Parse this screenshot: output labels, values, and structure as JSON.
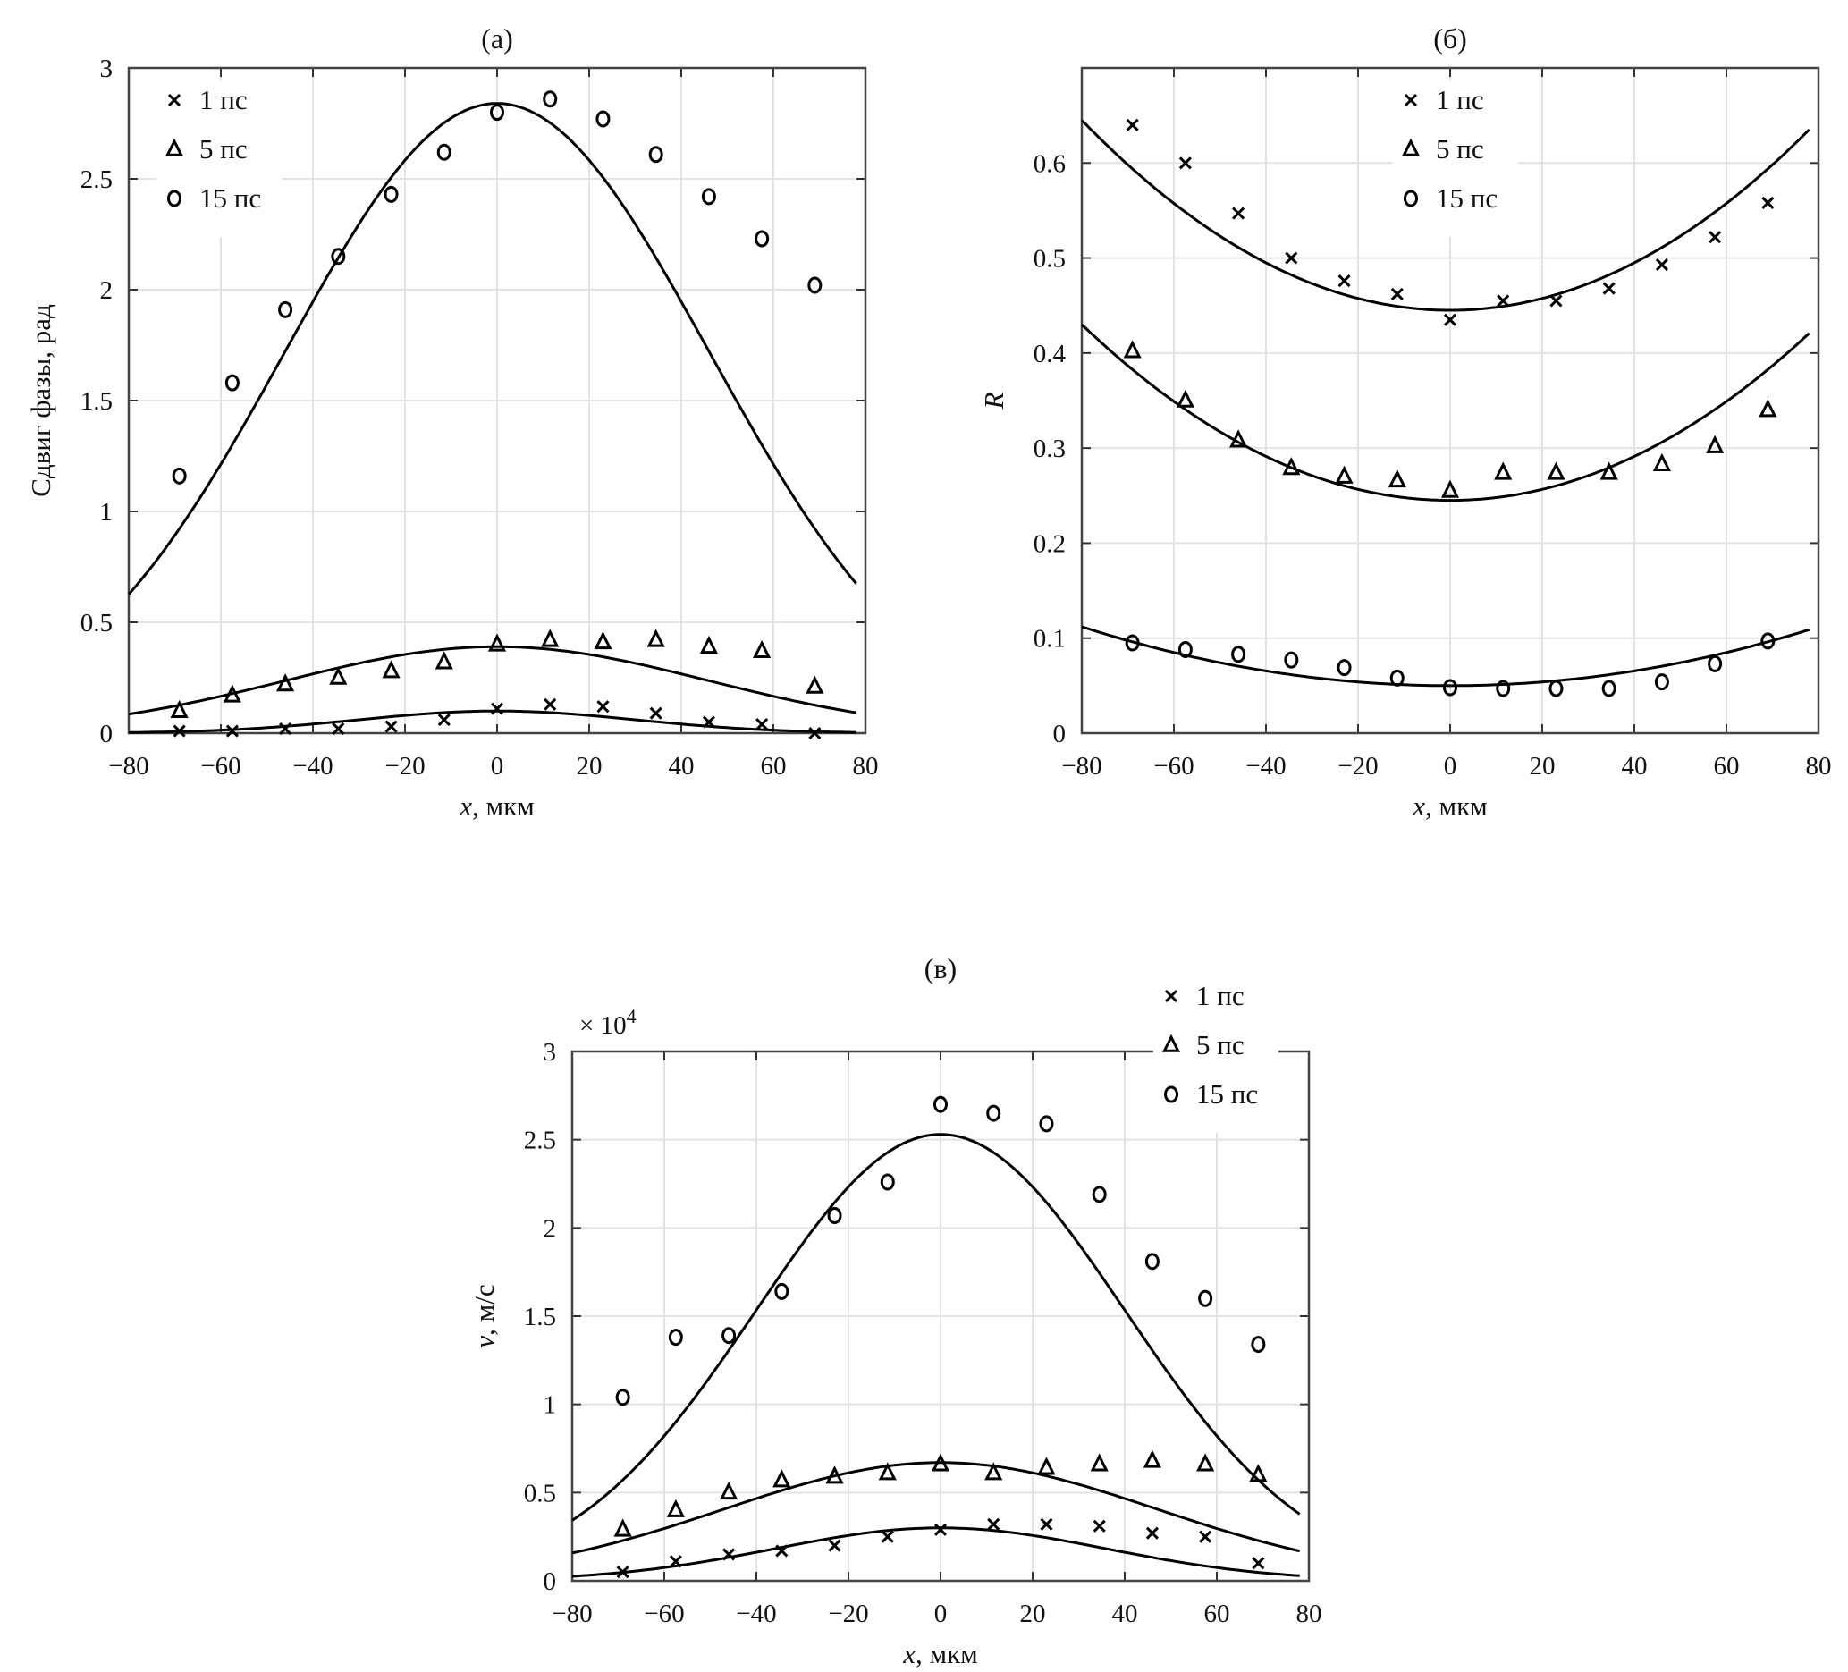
{
  "chart_data": [
    {
      "id": "a",
      "type": "scatter",
      "title": "(а)",
      "xlabel_var": "x",
      "xlabel_unit": ", мкм",
      "ylabel": "Сдвиг фазы, рад",
      "exponent_label": "",
      "xlim": [
        -80,
        80
      ],
      "ylim": [
        0,
        3
      ],
      "xticks": [
        "-80",
        "-60",
        "-40",
        "-20",
        "0",
        "20",
        "40",
        "60",
        "80"
      ],
      "yticks": [
        "0",
        "0.5",
        "1",
        "1.5",
        "2",
        "2.5",
        "3"
      ],
      "grid": true,
      "legend_position": "top-left",
      "x": [
        -69,
        -57.5,
        -46,
        -34.5,
        -23,
        -11.5,
        0,
        11.5,
        23,
        34.5,
        46,
        57.5,
        69
      ],
      "series": [
        {
          "name": "1 пс",
          "marker": "x",
          "values": [
            0.01,
            0.01,
            0.02,
            0.02,
            0.03,
            0.06,
            0.11,
            0.13,
            0.12,
            0.09,
            0.05,
            0.04,
            0.0
          ],
          "fit": {
            "kind": "gaussian",
            "peak": 0.1,
            "center": 0,
            "sigma": 30
          }
        },
        {
          "name": "5 пс",
          "marker": "triangle",
          "values": [
            0.1,
            0.17,
            0.22,
            0.25,
            0.28,
            0.32,
            0.4,
            0.42,
            0.41,
            0.42,
            0.39,
            0.37,
            0.21
          ],
          "fit": {
            "kind": "gaussian",
            "peak": 0.39,
            "center": 0,
            "sigma": 46
          }
        },
        {
          "name": "15 пс",
          "marker": "circle",
          "values": [
            1.16,
            1.58,
            1.91,
            2.15,
            2.43,
            2.62,
            2.8,
            2.86,
            2.77,
            2.61,
            2.42,
            2.23,
            2.02
          ],
          "fit": {
            "kind": "gaussian",
            "peak": 2.84,
            "center": 0,
            "sigma": 46
          }
        }
      ]
    },
    {
      "id": "b",
      "type": "scatter",
      "title": "(б)",
      "xlabel_var": "x",
      "xlabel_unit": ", мкм",
      "ylabel": "R",
      "exponent_label": "",
      "xlim": [
        -80,
        80
      ],
      "ylim": [
        0,
        0.7
      ],
      "xticks": [
        "-80",
        "-60",
        "-40",
        "-20",
        "0",
        "20",
        "40",
        "60",
        "80"
      ],
      "yticks": [
        "0",
        "0.1",
        "0.2",
        "0.3",
        "0.4",
        "0.5",
        "0.6"
      ],
      "grid": true,
      "legend_position": "top-center",
      "x": [
        -69,
        -57.5,
        -46,
        -34.5,
        -23,
        -11.5,
        0,
        11.5,
        23,
        34.5,
        46,
        57.5,
        69
      ],
      "series": [
        {
          "name": "1 пс",
          "marker": "x",
          "values": [
            0.64,
            0.6,
            0.547,
            0.5,
            0.476,
            0.462,
            0.435,
            0.455,
            0.455,
            0.468,
            0.493,
            0.522,
            0.558
          ],
          "fit": {
            "kind": "parabola",
            "min": 0.445,
            "center": 0,
            "edge": 0.645
          }
        },
        {
          "name": "5 пс",
          "marker": "triangle",
          "values": [
            0.402,
            0.35,
            0.308,
            0.279,
            0.27,
            0.266,
            0.255,
            0.274,
            0.274,
            0.274,
            0.283,
            0.302,
            0.34
          ],
          "fit": {
            "kind": "parabola",
            "min": 0.245,
            "center": 0,
            "edge": 0.43
          }
        },
        {
          "name": "15 пс",
          "marker": "circle",
          "values": [
            0.095,
            0.088,
            0.083,
            0.077,
            0.069,
            0.058,
            0.048,
            0.047,
            0.047,
            0.047,
            0.054,
            0.073,
            0.097
          ],
          "fit": {
            "kind": "parabola",
            "min": 0.05,
            "center": 0,
            "edge": 0.112
          }
        }
      ]
    },
    {
      "id": "c",
      "type": "scatter",
      "title": "(в)",
      "xlabel_var": "x",
      "xlabel_unit": ", мкм",
      "ylabel_var": "v",
      "ylabel": ", м/с",
      "exponent_label": "× 10",
      "exponent_power": "4",
      "xlim": [
        -80,
        80
      ],
      "ylim": [
        0,
        3
      ],
      "xticks": [
        "-80",
        "-60",
        "-40",
        "-20",
        "0",
        "20",
        "40",
        "60",
        "80"
      ],
      "yticks": [
        "0",
        "0.5",
        "1",
        "1.5",
        "2",
        "2.5",
        "3"
      ],
      "grid": true,
      "legend_position": "top-right",
      "x": [
        -69,
        -57.5,
        -46,
        -34.5,
        -23,
        -11.5,
        0,
        11.5,
        23,
        34.5,
        46,
        57.5,
        69
      ],
      "series": [
        {
          "name": "1 пс",
          "marker": "x",
          "values": [
            0.05,
            0.11,
            0.15,
            0.17,
            0.2,
            0.25,
            0.29,
            0.32,
            0.32,
            0.31,
            0.27,
            0.25,
            0.1
          ],
          "fit": {
            "kind": "gaussian",
            "peak": 0.3,
            "center": 0,
            "sigma": 36
          }
        },
        {
          "name": "5 пс",
          "marker": "triangle",
          "values": [
            0.29,
            0.4,
            0.5,
            0.57,
            0.59,
            0.61,
            0.66,
            0.61,
            0.64,
            0.66,
            0.68,
            0.66,
            0.6
          ],
          "fit": {
            "kind": "gaussian",
            "peak": 0.67,
            "center": 0,
            "sigma": 47
          }
        },
        {
          "name": "15 пс",
          "marker": "circle",
          "values": [
            1.04,
            1.38,
            1.39,
            1.64,
            2.07,
            2.26,
            2.7,
            2.65,
            2.59,
            2.19,
            1.81,
            1.6,
            1.34
          ],
          "fit": {
            "kind": "gaussian",
            "peak": 2.53,
            "center": 0,
            "sigma": 40
          }
        }
      ]
    }
  ]
}
